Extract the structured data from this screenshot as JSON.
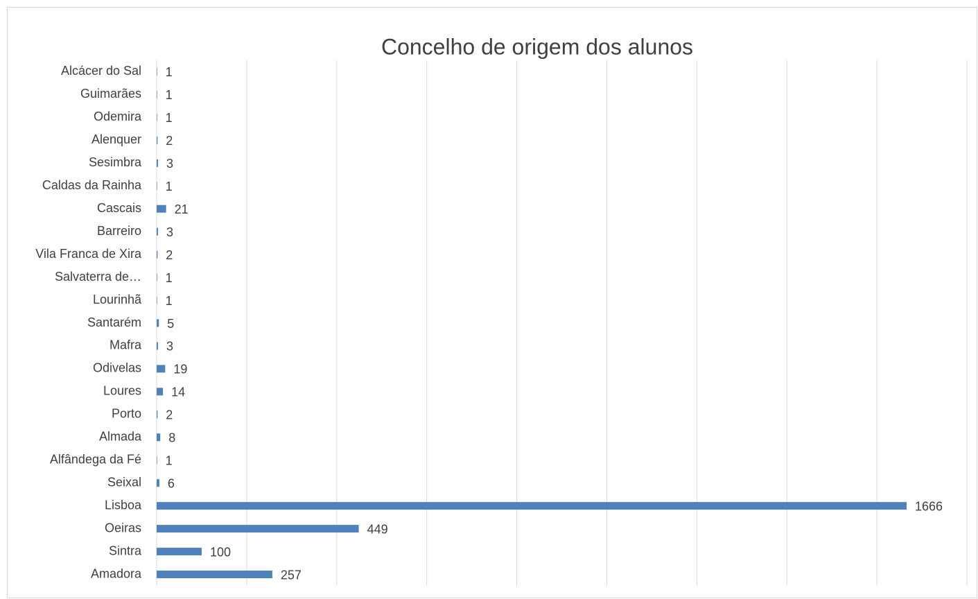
{
  "chart_data": {
    "type": "bar",
    "orientation": "horizontal",
    "title": "Concelho de origem dos alunos",
    "categories": [
      "Alcácer do Sal",
      "Guimarães",
      "Odemira",
      "Alenquer",
      "Sesimbra",
      "Caldas da Rainha",
      "Cascais",
      "Barreiro",
      "Vila Franca de Xira",
      "Salvaterra de…",
      "Lourinhã",
      "Santarém",
      "Mafra",
      "Odivelas",
      "Loures",
      "Porto",
      "Almada",
      "Alfândega da Fé",
      "Seixal",
      "Lisboa",
      "Oeiras",
      "Sintra",
      "Amadora"
    ],
    "values": [
      1,
      1,
      1,
      2,
      3,
      1,
      21,
      3,
      2,
      1,
      1,
      5,
      3,
      19,
      14,
      2,
      8,
      1,
      6,
      1666,
      449,
      100,
      257
    ],
    "color": "#4f81bd",
    "xlim": [
      0,
      1800
    ],
    "xticks": [
      0,
      200,
      400,
      600,
      800,
      1000,
      1200,
      1400,
      1600,
      1800
    ],
    "grid": true
  }
}
